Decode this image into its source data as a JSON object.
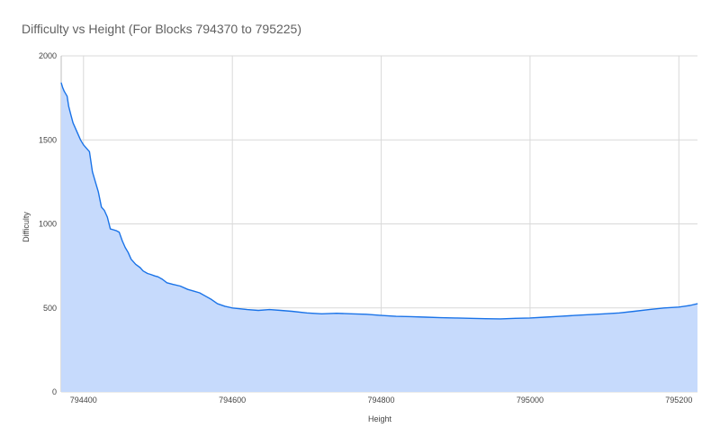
{
  "chart_data": {
    "type": "area",
    "title": "Difficulty vs Height (For Blocks 794370 to 795225)",
    "xlabel": "Height",
    "ylabel": "Difficulty",
    "xlim": [
      794370,
      795225
    ],
    "ylim": [
      0,
      2000
    ],
    "x_ticks": [
      794400,
      794600,
      794800,
      795000,
      795200
    ],
    "y_ticks": [
      0,
      500,
      1000,
      1500,
      2000
    ],
    "grid": true,
    "legend": "none",
    "colors": {
      "line": "#1a73e8",
      "fill": "#c6dafc"
    },
    "series": [
      {
        "x": [
          794370,
          794372,
          794374,
          794378,
          794380,
          794383,
          794386,
          794388,
          794392,
          794396,
          794400,
          794404,
          794408,
          794412,
          794416,
          794420,
          794424,
          794428,
          794432,
          794436,
          794440,
          794444,
          794448,
          794452,
          794456,
          794460,
          794464,
          794470,
          794476,
          794480,
          794486,
          794490,
          794496,
          794500,
          794506,
          794512,
          794520,
          794530,
          794540,
          794548,
          794556,
          794564,
          794572,
          794580,
          794590,
          794600,
          794610,
          794620,
          794635,
          794650,
          794665,
          794680,
          794700,
          794720,
          794740,
          794760,
          794780,
          794800,
          794820,
          794840,
          794860,
          794880,
          794900,
          794920,
          794940,
          794960,
          794980,
          795000,
          795020,
          795040,
          795060,
          795080,
          795100,
          795120,
          795140,
          795160,
          795180,
          795200,
          795215,
          795225
        ],
        "values": [
          1840,
          1810,
          1790,
          1760,
          1700,
          1650,
          1600,
          1580,
          1540,
          1500,
          1470,
          1450,
          1430,
          1310,
          1250,
          1190,
          1100,
          1080,
          1040,
          970,
          965,
          960,
          950,
          900,
          860,
          830,
          790,
          760,
          740,
          720,
          705,
          700,
          690,
          685,
          670,
          650,
          640,
          630,
          610,
          600,
          590,
          570,
          550,
          525,
          510,
          500,
          495,
          490,
          485,
          490,
          485,
          480,
          470,
          465,
          468,
          465,
          462,
          455,
          450,
          448,
          445,
          442,
          440,
          438,
          436,
          435,
          438,
          440,
          445,
          450,
          455,
          460,
          465,
          470,
          480,
          490,
          500,
          505,
          515,
          525
        ]
      }
    ]
  }
}
